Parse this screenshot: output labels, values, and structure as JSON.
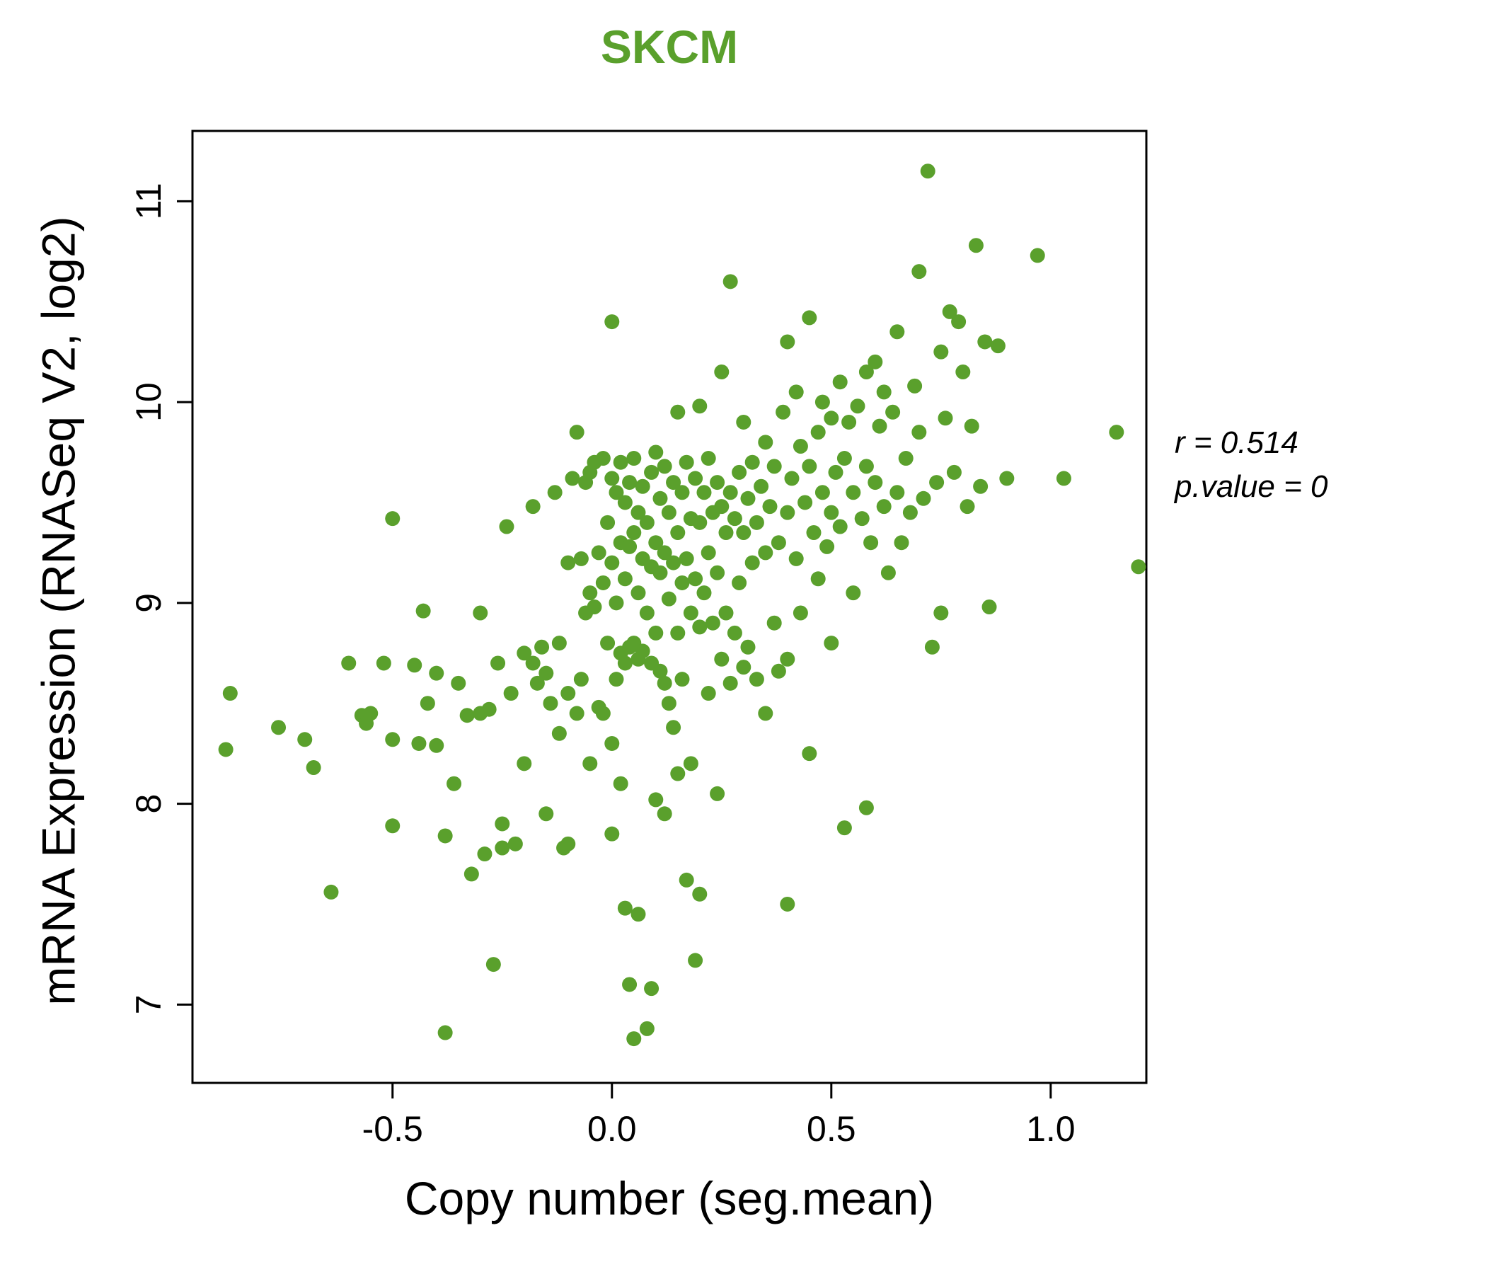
{
  "title": {
    "text": "SKCM",
    "color": "#5aa02c"
  },
  "annotation": {
    "line1": "r = 0.514",
    "line2": "p.value = 0"
  },
  "chart_data": {
    "type": "scatter",
    "title": "SKCM",
    "xlabel": "Copy number (seg.mean)",
    "ylabel": "mRNA Expression (RNASeq V2, log2)",
    "xlim": [
      -0.956,
      1.218
    ],
    "ylim": [
      6.61,
      11.35
    ],
    "xticks": [
      -0.5,
      0.0,
      0.5,
      1.0
    ],
    "xtick_labels": [
      "-0.5",
      "0.0",
      "0.5",
      "1.0"
    ],
    "yticks": [
      7,
      8,
      9,
      10,
      11
    ],
    "ytick_labels": [
      "7",
      "8",
      "9",
      "10",
      "11"
    ],
    "point_color": "#5aa02c",
    "correlation_r": 0.514,
    "p_value": 0,
    "legend": "none",
    "grid": false,
    "points": [
      [
        -0.87,
        8.55
      ],
      [
        -0.88,
        8.27
      ],
      [
        -0.76,
        8.38
      ],
      [
        -0.7,
        8.32
      ],
      [
        -0.68,
        8.18
      ],
      [
        -0.64,
        7.56
      ],
      [
        -0.6,
        8.7
      ],
      [
        -0.57,
        8.44
      ],
      [
        -0.56,
        8.4
      ],
      [
        -0.55,
        8.45
      ],
      [
        -0.52,
        8.7
      ],
      [
        -0.5,
        9.42
      ],
      [
        -0.5,
        8.32
      ],
      [
        -0.5,
        7.89
      ],
      [
        -0.45,
        8.69
      ],
      [
        -0.44,
        8.3
      ],
      [
        -0.43,
        8.96
      ],
      [
        -0.42,
        8.5
      ],
      [
        -0.4,
        8.65
      ],
      [
        -0.4,
        8.29
      ],
      [
        -0.38,
        7.84
      ],
      [
        -0.38,
        6.86
      ],
      [
        -0.36,
        8.1
      ],
      [
        -0.35,
        8.6
      ],
      [
        -0.33,
        8.44
      ],
      [
        -0.32,
        7.65
      ],
      [
        -0.3,
        8.95
      ],
      [
        -0.3,
        8.45
      ],
      [
        -0.29,
        7.75
      ],
      [
        -0.28,
        8.47
      ],
      [
        -0.27,
        7.2
      ],
      [
        -0.26,
        8.7
      ],
      [
        -0.25,
        7.9
      ],
      [
        -0.25,
        7.78
      ],
      [
        -0.24,
        9.38
      ],
      [
        -0.23,
        8.55
      ],
      [
        -0.22,
        7.8
      ],
      [
        -0.2,
        8.75
      ],
      [
        -0.2,
        8.2
      ],
      [
        -0.18,
        9.48
      ],
      [
        -0.18,
        8.7
      ],
      [
        -0.17,
        8.6
      ],
      [
        -0.16,
        8.78
      ],
      [
        -0.15,
        8.65
      ],
      [
        -0.15,
        7.95
      ],
      [
        -0.14,
        8.5
      ],
      [
        -0.13,
        9.55
      ],
      [
        -0.12,
        8.8
      ],
      [
        -0.12,
        8.35
      ],
      [
        -0.11,
        7.78
      ],
      [
        -0.1,
        9.2
      ],
      [
        -0.1,
        8.55
      ],
      [
        -0.1,
        7.8
      ],
      [
        -0.09,
        9.62
      ],
      [
        -0.08,
        9.85
      ],
      [
        -0.08,
        8.45
      ],
      [
        -0.07,
        9.22
      ],
      [
        -0.07,
        8.62
      ],
      [
        -0.06,
        9.6
      ],
      [
        -0.06,
        8.95
      ],
      [
        -0.05,
        9.65
      ],
      [
        -0.05,
        9.05
      ],
      [
        -0.05,
        8.2
      ],
      [
        -0.04,
        9.7
      ],
      [
        -0.04,
        8.98
      ],
      [
        -0.03,
        9.25
      ],
      [
        -0.03,
        8.48
      ],
      [
        -0.02,
        9.72
      ],
      [
        -0.02,
        9.1
      ],
      [
        -0.02,
        8.45
      ],
      [
        -0.01,
        9.4
      ],
      [
        -0.01,
        8.8
      ],
      [
        0.0,
        10.4
      ],
      [
        0.0,
        9.62
      ],
      [
        0.0,
        9.2
      ],
      [
        0.0,
        8.3
      ],
      [
        0.0,
        7.85
      ],
      [
        0.01,
        9.55
      ],
      [
        0.01,
        9.0
      ],
      [
        0.01,
        8.62
      ],
      [
        0.02,
        9.7
      ],
      [
        0.02,
        9.3
      ],
      [
        0.02,
        8.75
      ],
      [
        0.02,
        8.1
      ],
      [
        0.03,
        9.5
      ],
      [
        0.03,
        9.12
      ],
      [
        0.03,
        8.7
      ],
      [
        0.03,
        7.48
      ],
      [
        0.04,
        9.6
      ],
      [
        0.04,
        9.28
      ],
      [
        0.04,
        8.78
      ],
      [
        0.04,
        7.1
      ],
      [
        0.05,
        9.72
      ],
      [
        0.05,
        9.35
      ],
      [
        0.05,
        8.8
      ],
      [
        0.05,
        6.83
      ],
      [
        0.06,
        9.45
      ],
      [
        0.06,
        9.05
      ],
      [
        0.06,
        8.72
      ],
      [
        0.06,
        7.45
      ],
      [
        0.07,
        9.58
      ],
      [
        0.07,
        9.22
      ],
      [
        0.07,
        8.76
      ],
      [
        0.08,
        9.4
      ],
      [
        0.08,
        8.95
      ],
      [
        0.08,
        6.88
      ],
      [
        0.09,
        9.65
      ],
      [
        0.09,
        9.18
      ],
      [
        0.09,
        8.7
      ],
      [
        0.09,
        7.08
      ],
      [
        0.1,
        9.75
      ],
      [
        0.1,
        9.3
      ],
      [
        0.1,
        8.85
      ],
      [
        0.1,
        8.02
      ],
      [
        0.11,
        9.52
      ],
      [
        0.11,
        9.15
      ],
      [
        0.11,
        8.66
      ],
      [
        0.12,
        9.68
      ],
      [
        0.12,
        9.25
      ],
      [
        0.12,
        8.6
      ],
      [
        0.12,
        7.95
      ],
      [
        0.13,
        9.45
      ],
      [
        0.13,
        9.02
      ],
      [
        0.13,
        8.5
      ],
      [
        0.14,
        9.6
      ],
      [
        0.14,
        9.2
      ],
      [
        0.14,
        8.38
      ],
      [
        0.15,
        9.95
      ],
      [
        0.15,
        9.35
      ],
      [
        0.15,
        8.85
      ],
      [
        0.15,
        8.15
      ],
      [
        0.16,
        9.55
      ],
      [
        0.16,
        9.1
      ],
      [
        0.16,
        8.62
      ],
      [
        0.17,
        9.7
      ],
      [
        0.17,
        9.22
      ],
      [
        0.17,
        7.62
      ],
      [
        0.18,
        9.42
      ],
      [
        0.18,
        8.95
      ],
      [
        0.18,
        8.2
      ],
      [
        0.19,
        9.62
      ],
      [
        0.19,
        9.12
      ],
      [
        0.19,
        7.22
      ],
      [
        0.2,
        9.98
      ],
      [
        0.2,
        9.4
      ],
      [
        0.2,
        8.88
      ],
      [
        0.2,
        7.55
      ],
      [
        0.21,
        9.55
      ],
      [
        0.21,
        9.05
      ],
      [
        0.22,
        9.72
      ],
      [
        0.22,
        9.25
      ],
      [
        0.22,
        8.55
      ],
      [
        0.23,
        9.45
      ],
      [
        0.23,
        8.9
      ],
      [
        0.24,
        9.6
      ],
      [
        0.24,
        9.15
      ],
      [
        0.24,
        8.05
      ],
      [
        0.25,
        10.15
      ],
      [
        0.25,
        9.48
      ],
      [
        0.25,
        8.72
      ],
      [
        0.26,
        9.35
      ],
      [
        0.26,
        8.95
      ],
      [
        0.27,
        10.6
      ],
      [
        0.27,
        9.55
      ],
      [
        0.27,
        8.6
      ],
      [
        0.28,
        9.42
      ],
      [
        0.28,
        8.85
      ],
      [
        0.29,
        9.65
      ],
      [
        0.29,
        9.1
      ],
      [
        0.3,
        9.9
      ],
      [
        0.3,
        9.35
      ],
      [
        0.3,
        8.68
      ],
      [
        0.31,
        9.52
      ],
      [
        0.31,
        8.78
      ],
      [
        0.32,
        9.7
      ],
      [
        0.32,
        9.2
      ],
      [
        0.33,
        9.4
      ],
      [
        0.33,
        8.62
      ],
      [
        0.34,
        9.58
      ],
      [
        0.35,
        9.8
      ],
      [
        0.35,
        9.25
      ],
      [
        0.35,
        8.45
      ],
      [
        0.36,
        9.48
      ],
      [
        0.37,
        9.68
      ],
      [
        0.37,
        8.9
      ],
      [
        0.38,
        9.3
      ],
      [
        0.38,
        8.66
      ],
      [
        0.39,
        9.95
      ],
      [
        0.4,
        10.3
      ],
      [
        0.4,
        9.45
      ],
      [
        0.4,
        8.72
      ],
      [
        0.4,
        7.5
      ],
      [
        0.41,
        9.62
      ],
      [
        0.42,
        10.05
      ],
      [
        0.42,
        9.22
      ],
      [
        0.43,
        9.78
      ],
      [
        0.43,
        8.95
      ],
      [
        0.44,
        9.5
      ],
      [
        0.45,
        10.42
      ],
      [
        0.45,
        9.68
      ],
      [
        0.45,
        8.25
      ],
      [
        0.46,
        9.35
      ],
      [
        0.47,
        9.85
      ],
      [
        0.47,
        9.12
      ],
      [
        0.48,
        10.0
      ],
      [
        0.48,
        9.55
      ],
      [
        0.49,
        9.28
      ],
      [
        0.5,
        9.92
      ],
      [
        0.5,
        9.45
      ],
      [
        0.5,
        8.8
      ],
      [
        0.51,
        9.65
      ],
      [
        0.52,
        10.1
      ],
      [
        0.52,
        9.38
      ],
      [
        0.53,
        9.72
      ],
      [
        0.53,
        7.88
      ],
      [
        0.54,
        9.9
      ],
      [
        0.55,
        9.55
      ],
      [
        0.55,
        9.05
      ],
      [
        0.56,
        9.98
      ],
      [
        0.57,
        9.42
      ],
      [
        0.58,
        10.15
      ],
      [
        0.58,
        9.68
      ],
      [
        0.58,
        7.98
      ],
      [
        0.59,
        9.3
      ],
      [
        0.6,
        10.2
      ],
      [
        0.6,
        9.6
      ],
      [
        0.61,
        9.88
      ],
      [
        0.62,
        10.05
      ],
      [
        0.62,
        9.48
      ],
      [
        0.63,
        9.15
      ],
      [
        0.64,
        9.95
      ],
      [
        0.65,
        10.35
      ],
      [
        0.65,
        9.55
      ],
      [
        0.66,
        9.3
      ],
      [
        0.67,
        9.72
      ],
      [
        0.68,
        9.45
      ],
      [
        0.69,
        10.08
      ],
      [
        0.7,
        10.65
      ],
      [
        0.7,
        9.85
      ],
      [
        0.71,
        9.52
      ],
      [
        0.72,
        11.15
      ],
      [
        0.73,
        8.78
      ],
      [
        0.74,
        9.6
      ],
      [
        0.75,
        10.25
      ],
      [
        0.75,
        8.95
      ],
      [
        0.76,
        9.92
      ],
      [
        0.77,
        10.45
      ],
      [
        0.78,
        9.65
      ],
      [
        0.79,
        10.4
      ],
      [
        0.8,
        10.15
      ],
      [
        0.81,
        9.48
      ],
      [
        0.82,
        9.88
      ],
      [
        0.83,
        10.78
      ],
      [
        0.84,
        9.58
      ],
      [
        0.85,
        10.3
      ],
      [
        0.86,
        8.98
      ],
      [
        0.88,
        10.28
      ],
      [
        0.9,
        9.62
      ],
      [
        0.97,
        10.73
      ],
      [
        1.03,
        9.62
      ],
      [
        1.15,
        9.85
      ],
      [
        1.2,
        9.18
      ]
    ]
  }
}
